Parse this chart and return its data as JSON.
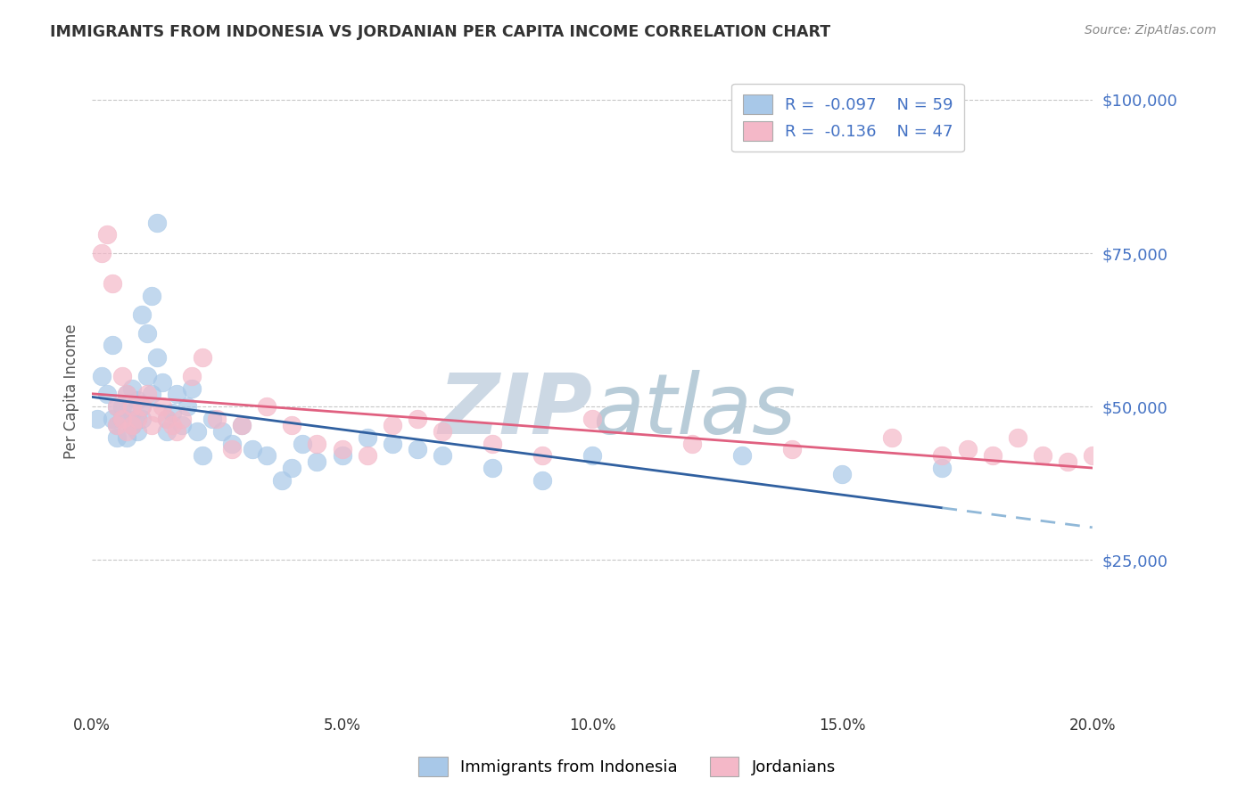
{
  "title": "IMMIGRANTS FROM INDONESIA VS JORDANIAN PER CAPITA INCOME CORRELATION CHART",
  "source": "Source: ZipAtlas.com",
  "ylabel": "Per Capita Income",
  "yticks": [
    0,
    25000,
    50000,
    75000,
    100000
  ],
  "ytick_labels": [
    "",
    "$25,000",
    "$50,000",
    "$75,000",
    "$100,000"
  ],
  "xmin": 0.0,
  "xmax": 0.2,
  "ymin": 0,
  "ymax": 105000,
  "legend_r1": "-0.097",
  "legend_n1": "59",
  "legend_r2": "-0.136",
  "legend_n2": "47",
  "legend_label1": "Immigrants from Indonesia",
  "legend_label2": "Jordanians",
  "scatter_blue": {
    "x": [
      0.001,
      0.002,
      0.003,
      0.004,
      0.004,
      0.005,
      0.005,
      0.005,
      0.006,
      0.006,
      0.007,
      0.007,
      0.007,
      0.008,
      0.008,
      0.008,
      0.009,
      0.009,
      0.009,
      0.01,
      0.01,
      0.01,
      0.011,
      0.011,
      0.012,
      0.012,
      0.013,
      0.013,
      0.014,
      0.015,
      0.015,
      0.016,
      0.017,
      0.018,
      0.019,
      0.02,
      0.021,
      0.022,
      0.024,
      0.026,
      0.028,
      0.03,
      0.032,
      0.035,
      0.038,
      0.04,
      0.042,
      0.045,
      0.05,
      0.055,
      0.06,
      0.065,
      0.07,
      0.08,
      0.09,
      0.1,
      0.13,
      0.15,
      0.17
    ],
    "y": [
      48000,
      55000,
      52000,
      60000,
      48000,
      50000,
      47000,
      45000,
      50000,
      48000,
      52000,
      48000,
      45000,
      53000,
      49000,
      47000,
      51000,
      48000,
      46000,
      65000,
      50000,
      48000,
      62000,
      55000,
      68000,
      52000,
      80000,
      58000,
      54000,
      48000,
      46000,
      49000,
      52000,
      47000,
      50000,
      53000,
      46000,
      42000,
      48000,
      46000,
      44000,
      47000,
      43000,
      42000,
      38000,
      40000,
      44000,
      41000,
      42000,
      45000,
      44000,
      43000,
      42000,
      40000,
      38000,
      42000,
      42000,
      39000,
      40000
    ]
  },
  "scatter_pink": {
    "x": [
      0.002,
      0.003,
      0.004,
      0.005,
      0.005,
      0.006,
      0.006,
      0.007,
      0.007,
      0.008,
      0.008,
      0.009,
      0.01,
      0.011,
      0.012,
      0.013,
      0.014,
      0.015,
      0.016,
      0.017,
      0.018,
      0.02,
      0.022,
      0.025,
      0.028,
      0.03,
      0.035,
      0.04,
      0.045,
      0.05,
      0.055,
      0.06,
      0.065,
      0.07,
      0.08,
      0.09,
      0.1,
      0.12,
      0.14,
      0.16,
      0.17,
      0.175,
      0.18,
      0.185,
      0.19,
      0.195,
      0.2
    ],
    "y": [
      75000,
      78000,
      70000,
      50000,
      47000,
      55000,
      48000,
      52000,
      46000,
      50000,
      47000,
      48000,
      50000,
      52000,
      47000,
      49000,
      50000,
      48000,
      47000,
      46000,
      48000,
      55000,
      58000,
      48000,
      43000,
      47000,
      50000,
      47000,
      44000,
      43000,
      42000,
      47000,
      48000,
      46000,
      44000,
      42000,
      48000,
      44000,
      43000,
      45000,
      42000,
      43000,
      42000,
      45000,
      42000,
      41000,
      42000
    ]
  },
  "blue_color": "#a8c8e8",
  "pink_color": "#f4b8c8",
  "blue_line_color": "#3060a0",
  "pink_line_color": "#e06080",
  "blue_dash_color": "#90b8d8",
  "watermark_zip_color": "#c8d4e0",
  "watermark_atlas_color": "#b8ccd8",
  "grid_color": "#c8c8c8",
  "tick_color": "#4472c4",
  "title_color": "#333333",
  "source_color": "#888888",
  "bg_color": "#ffffff"
}
